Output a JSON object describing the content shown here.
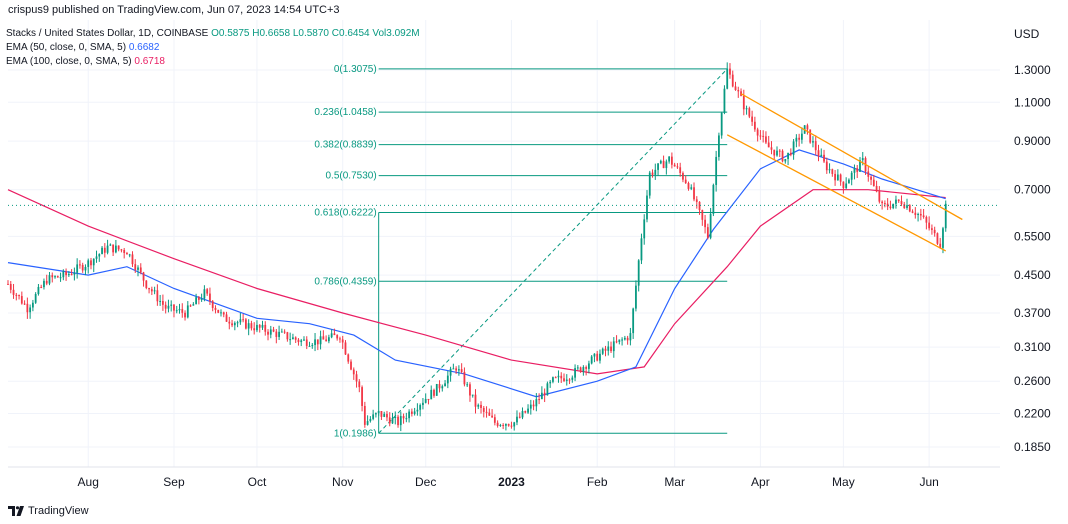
{
  "header": {
    "published": "crispus9 published on TradingView.com, Jun 07, 2023 14:54 UTC+3"
  },
  "legend": {
    "symbol": "Stacks / United States Dollar, 1D, COINBASE",
    "open": "O0.5875",
    "high": "H0.6658",
    "low": "L0.5870",
    "close": "C0.6454",
    "vol": "Vol3.092M",
    "ema1_label": "EMA (50, close, 0, SMA, 5)",
    "ema1_value": "0.6682",
    "ema2_label": "EMA (100, close, 0, SMA, 5)",
    "ema2_value": "0.6718"
  },
  "currency": "USD",
  "footer": {
    "brand": "TradingView"
  },
  "colors": {
    "up": "#089981",
    "down": "#f23645",
    "ema50": "#2962ff",
    "ema100": "#e91e63",
    "fib": "#089981",
    "channel": "#ff9800"
  },
  "chart_data": {
    "type": "candlestick",
    "yscale": "log",
    "yticks": [
      1.3,
      1.1,
      0.9,
      0.7,
      0.55,
      0.45,
      0.37,
      0.31,
      0.26,
      0.22,
      0.185
    ],
    "ytick_labels": [
      "1.3000",
      "1.1000",
      "0.9000",
      "0.7000",
      "0.5500",
      "0.4500",
      "0.3700",
      "0.3100",
      "0.2600",
      "0.2200",
      "0.1850"
    ],
    "xticks": [
      {
        "label": "Aug",
        "date": "2022-08-01"
      },
      {
        "label": "Sep",
        "date": "2022-09-01"
      },
      {
        "label": "Oct",
        "date": "2022-10-01"
      },
      {
        "label": "Nov",
        "date": "2022-11-01"
      },
      {
        "label": "Dec",
        "date": "2022-12-01"
      },
      {
        "label": "2023",
        "date": "2023-01-01"
      },
      {
        "label": "Feb",
        "date": "2023-02-01"
      },
      {
        "label": "Mar",
        "date": "2023-03-01"
      },
      {
        "label": "Apr",
        "date": "2023-04-01"
      },
      {
        "label": "May",
        "date": "2023-05-01"
      },
      {
        "label": "Jun",
        "date": "2023-06-01"
      }
    ],
    "last_price": 0.6454,
    "price_path": [
      [
        "2022-07-03",
        0.43
      ],
      [
        "2022-07-10",
        0.38
      ],
      [
        "2022-07-17",
        0.44
      ],
      [
        "2022-07-24",
        0.45
      ],
      [
        "2022-08-01",
        0.48
      ],
      [
        "2022-08-08",
        0.52
      ],
      [
        "2022-08-15",
        0.51
      ],
      [
        "2022-08-22",
        0.43
      ],
      [
        "2022-08-29",
        0.38
      ],
      [
        "2022-09-05",
        0.37
      ],
      [
        "2022-09-12",
        0.41
      ],
      [
        "2022-09-19",
        0.36
      ],
      [
        "2022-09-26",
        0.35
      ],
      [
        "2022-10-03",
        0.34
      ],
      [
        "2022-10-10",
        0.33
      ],
      [
        "2022-10-17",
        0.32
      ],
      [
        "2022-10-24",
        0.32
      ],
      [
        "2022-10-31",
        0.33
      ],
      [
        "2022-11-07",
        0.25
      ],
      [
        "2022-11-09",
        0.21
      ],
      [
        "2022-11-14",
        0.22
      ],
      [
        "2022-11-21",
        0.21
      ],
      [
        "2022-11-28",
        0.23
      ],
      [
        "2022-12-05",
        0.25
      ],
      [
        "2022-12-12",
        0.28
      ],
      [
        "2022-12-15",
        0.26
      ],
      [
        "2022-12-19",
        0.23
      ],
      [
        "2022-12-26",
        0.21
      ],
      [
        "2023-01-02",
        0.21
      ],
      [
        "2023-01-09",
        0.23
      ],
      [
        "2023-01-16",
        0.26
      ],
      [
        "2023-01-23",
        0.27
      ],
      [
        "2023-01-30",
        0.29
      ],
      [
        "2023-02-06",
        0.31
      ],
      [
        "2023-02-13",
        0.33
      ],
      [
        "2023-02-17",
        0.55
      ],
      [
        "2023-02-20",
        0.76
      ],
      [
        "2023-02-27",
        0.82
      ],
      [
        "2023-03-06",
        0.72
      ],
      [
        "2023-03-13",
        0.55
      ],
      [
        "2023-03-17",
        0.95
      ],
      [
        "2023-03-20",
        1.3
      ],
      [
        "2023-03-27",
        1.05
      ],
      [
        "2023-04-03",
        0.88
      ],
      [
        "2023-04-10",
        0.82
      ],
      [
        "2023-04-17",
        0.96
      ],
      [
        "2023-04-24",
        0.8
      ],
      [
        "2023-05-01",
        0.72
      ],
      [
        "2023-05-08",
        0.81
      ],
      [
        "2023-05-15",
        0.64
      ],
      [
        "2023-05-22",
        0.66
      ],
      [
        "2023-05-29",
        0.61
      ],
      [
        "2023-06-05",
        0.53
      ],
      [
        "2023-06-07",
        0.6454
      ]
    ],
    "ema50": [
      [
        "2022-07-03",
        0.48
      ],
      [
        "2022-08-01",
        0.45
      ],
      [
        "2022-08-15",
        0.47
      ],
      [
        "2022-09-01",
        0.42
      ],
      [
        "2022-10-01",
        0.36
      ],
      [
        "2022-10-20",
        0.35
      ],
      [
        "2022-11-05",
        0.33
      ],
      [
        "2022-11-20",
        0.29
      ],
      [
        "2022-12-15",
        0.27
      ],
      [
        "2023-01-10",
        0.24
      ],
      [
        "2023-02-01",
        0.26
      ],
      [
        "2023-02-15",
        0.28
      ],
      [
        "2023-03-01",
        0.42
      ],
      [
        "2023-03-15",
        0.57
      ],
      [
        "2023-04-01",
        0.78
      ],
      [
        "2023-04-15",
        0.86
      ],
      [
        "2023-05-01",
        0.8
      ],
      [
        "2023-05-15",
        0.74
      ],
      [
        "2023-06-07",
        0.6682
      ]
    ],
    "ema100": [
      [
        "2022-07-03",
        0.7
      ],
      [
        "2022-08-01",
        0.58
      ],
      [
        "2022-09-01",
        0.49
      ],
      [
        "2022-10-01",
        0.42
      ],
      [
        "2022-11-01",
        0.37
      ],
      [
        "2022-12-01",
        0.33
      ],
      [
        "2023-01-01",
        0.29
      ],
      [
        "2023-02-01",
        0.27
      ],
      [
        "2023-02-18",
        0.28
      ],
      [
        "2023-03-01",
        0.35
      ],
      [
        "2023-03-20",
        0.47
      ],
      [
        "2023-04-01",
        0.58
      ],
      [
        "2023-04-20",
        0.7
      ],
      [
        "2023-05-10",
        0.7
      ],
      [
        "2023-06-07",
        0.6718
      ]
    ],
    "fibonacci": {
      "from": {
        "date": "2022-11-14",
        "price": 0.1986
      },
      "to": {
        "date": "2023-03-20",
        "price": 1.3075
      },
      "levels": [
        {
          "label": "0(1.3075)",
          "price": 1.3075
        },
        {
          "label": "0.236(1.0458)",
          "price": 1.0458
        },
        {
          "label": "0.382(0.8839)",
          "price": 0.8839
        },
        {
          "label": "0.5(0.7530)",
          "price": 0.753
        },
        {
          "label": "0.618(0.6222)",
          "price": 0.6222
        },
        {
          "label": "0.786(0.4359)",
          "price": 0.4359
        },
        {
          "label": "1(0.1986)",
          "price": 0.1986
        }
      ]
    },
    "channel": {
      "upper": [
        {
          "date": "2023-03-25",
          "price": 1.15
        },
        {
          "date": "2023-06-13",
          "price": 0.6
        }
      ],
      "lower": [
        {
          "date": "2023-03-20",
          "price": 0.93
        },
        {
          "date": "2023-06-07",
          "price": 0.51
        }
      ]
    }
  }
}
